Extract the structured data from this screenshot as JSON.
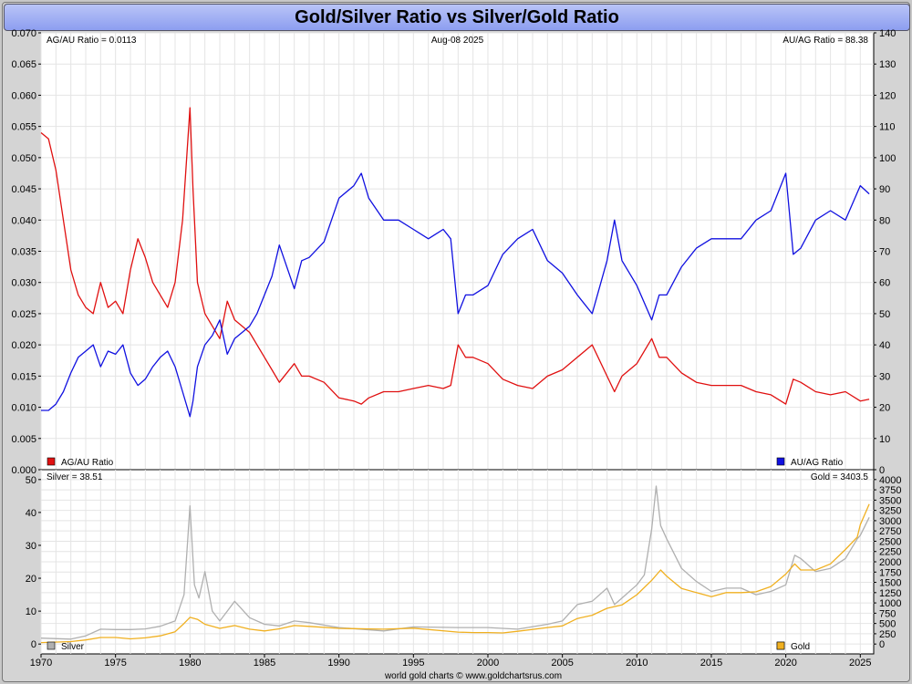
{
  "title": "Gold/Silver Ratio vs Silver/Gold Ratio",
  "footer": "world gold charts © www.goldchartsrus.com",
  "chart_data": [
    {
      "type": "line",
      "panel": "top",
      "date_label": "Aug-08  2025",
      "left_readout": "AG/AU Ratio = 0.0113",
      "right_readout": "AU/AG Ratio = 88.38",
      "left_axis": {
        "ylim": [
          0,
          0.07
        ],
        "ticks": [
          "0.000",
          "0.005",
          "0.010",
          "0.015",
          "0.020",
          "0.025",
          "0.030",
          "0.035",
          "0.040",
          "0.045",
          "0.050",
          "0.055",
          "0.060",
          "0.065",
          "0.070"
        ]
      },
      "right_axis": {
        "ylim": [
          0,
          140
        ],
        "ticks": [
          "0",
          "10",
          "20",
          "30",
          "40",
          "50",
          "60",
          "70",
          "80",
          "90",
          "100",
          "110",
          "120",
          "130",
          "140"
        ]
      },
      "grid": true,
      "series": [
        {
          "name": "AG/AU Ratio",
          "axis": "left",
          "color": "#e01010",
          "x": [
            1970,
            1970.5,
            1971,
            1971.5,
            1972,
            1972.5,
            1973,
            1973.5,
            1974,
            1974.5,
            1975,
            1975.5,
            1976,
            1976.5,
            1977,
            1977.5,
            1978,
            1978.5,
            1979,
            1979.5,
            1980,
            1980.2,
            1980.5,
            1981,
            1981.5,
            1982,
            1982.5,
            1983,
            1983.5,
            1984,
            1984.5,
            1985,
            1985.5,
            1986,
            1987,
            1987.5,
            1988,
            1989,
            1990,
            1991,
            1991.5,
            1992,
            1993,
            1994,
            1995,
            1996,
            1997,
            1997.5,
            1998,
            1998.5,
            1999,
            2000,
            2001,
            2002,
            2003,
            2004,
            2005,
            2006,
            2007,
            2008,
            2008.5,
            2009,
            2010,
            2011,
            2011.5,
            2012,
            2013,
            2014,
            2015,
            2016,
            2017,
            2018,
            2019,
            2020,
            2020.5,
            2021,
            2022,
            2023,
            2024,
            2025,
            2025.6
          ],
          "values": [
            0.054,
            0.053,
            0.048,
            0.04,
            0.032,
            0.028,
            0.026,
            0.025,
            0.03,
            0.026,
            0.027,
            0.025,
            0.032,
            0.037,
            0.034,
            0.03,
            0.028,
            0.026,
            0.03,
            0.04,
            0.058,
            0.045,
            0.03,
            0.025,
            0.023,
            0.021,
            0.027,
            0.024,
            0.023,
            0.022,
            0.02,
            0.018,
            0.016,
            0.014,
            0.017,
            0.015,
            0.015,
            0.014,
            0.0115,
            0.011,
            0.0105,
            0.0115,
            0.0125,
            0.0125,
            0.013,
            0.0135,
            0.013,
            0.0135,
            0.02,
            0.018,
            0.018,
            0.017,
            0.0145,
            0.0135,
            0.013,
            0.015,
            0.016,
            0.018,
            0.02,
            0.015,
            0.0125,
            0.015,
            0.017,
            0.021,
            0.018,
            0.018,
            0.0155,
            0.014,
            0.0135,
            0.0135,
            0.0135,
            0.0125,
            0.012,
            0.0105,
            0.0145,
            0.014,
            0.0125,
            0.012,
            0.0125,
            0.011,
            0.0113
          ]
        },
        {
          "name": "AU/AG Ratio",
          "axis": "right",
          "color": "#1010e0",
          "x": [
            1970,
            1970.5,
            1971,
            1971.5,
            1972,
            1972.5,
            1973,
            1973.5,
            1974,
            1974.5,
            1975,
            1975.5,
            1976,
            1976.5,
            1977,
            1977.5,
            1978,
            1978.5,
            1979,
            1979.5,
            1980,
            1980.2,
            1980.5,
            1981,
            1981.5,
            1982,
            1982.5,
            1983,
            1983.5,
            1984,
            1984.5,
            1985,
            1985.5,
            1986,
            1987,
            1987.5,
            1988,
            1989,
            1990,
            1991,
            1991.5,
            1992,
            1993,
            1994,
            1995,
            1996,
            1997,
            1997.5,
            1998,
            1998.5,
            1999,
            2000,
            2001,
            2002,
            2003,
            2004,
            2005,
            2006,
            2007,
            2008,
            2008.5,
            2009,
            2010,
            2011,
            2011.5,
            2012,
            2013,
            2014,
            2015,
            2016,
            2017,
            2018,
            2019,
            2020,
            2020.5,
            2021,
            2022,
            2023,
            2024,
            2025,
            2025.6
          ],
          "values": [
            19,
            19,
            21,
            25,
            31,
            36,
            38,
            40,
            33,
            38,
            37,
            40,
            31,
            27,
            29,
            33,
            36,
            38,
            33,
            25,
            17,
            22,
            33,
            40,
            43,
            48,
            37,
            42,
            44,
            46,
            50,
            56,
            62,
            72,
            58,
            67,
            68,
            73,
            87,
            91,
            95,
            87,
            80,
            80,
            77,
            74,
            77,
            74,
            50,
            56,
            56,
            59,
            69,
            74,
            77,
            67,
            63,
            56,
            50,
            67,
            80,
            67,
            59,
            48,
            56,
            56,
            65,
            71,
            74,
            74,
            74,
            80,
            83,
            95,
            69,
            71,
            80,
            83,
            80,
            91,
            88.38
          ]
        }
      ],
      "legend": [
        {
          "label": "AG/AU Ratio",
          "color": "#e01010",
          "position": "bottom-left"
        },
        {
          "label": "AU/AG Ratio",
          "color": "#1010e0",
          "position": "bottom-right"
        }
      ]
    },
    {
      "type": "line",
      "panel": "bottom",
      "left_readout": "Silver = 38.51",
      "right_readout": "Gold = 3403.5",
      "left_axis": {
        "ylim": [
          -3,
          53
        ],
        "ticks": [
          "0",
          "10",
          "20",
          "30",
          "40",
          "50"
        ]
      },
      "right_axis": {
        "ylim": [
          -240,
          4240
        ],
        "ticks": [
          "0",
          "250",
          "500",
          "750",
          "1000",
          "1250",
          "1500",
          "1750",
          "2000",
          "2250",
          "2500",
          "2750",
          "3000",
          "3250",
          "3500",
          "3750",
          "4000"
        ]
      },
      "x_ticks": [
        "1970",
        "1975",
        "1980",
        "1985",
        "1990",
        "1995",
        "2000",
        "2005",
        "2010",
        "2015",
        "2020",
        "2025"
      ],
      "grid": true,
      "series": [
        {
          "name": "Silver",
          "axis": "left",
          "color": "#b0b0b0",
          "x": [
            1970,
            1972,
            1973,
            1974,
            1975,
            1976,
            1977,
            1978,
            1979,
            1979.6,
            1980,
            1980.3,
            1980.6,
            1981,
            1981.5,
            1982,
            1982.5,
            1983,
            1984,
            1985,
            1986,
            1987,
            1988,
            1990,
            1993,
            1995,
            1998,
            2000,
            2002,
            2004,
            2005,
            2006,
            2007,
            2008,
            2008.5,
            2009,
            2010,
            2010.5,
            2011,
            2011.3,
            2011.6,
            2012,
            2013,
            2014,
            2015,
            2016,
            2017,
            2018,
            2019,
            2020,
            2020.6,
            2021,
            2022,
            2023,
            2024,
            2024.8,
            2025,
            2025.6
          ],
          "values": [
            1.8,
            1.5,
            2.5,
            4.5,
            4.4,
            4.4,
            4.6,
            5.4,
            7,
            15,
            42,
            18,
            14,
            22,
            10,
            7,
            10,
            13,
            8,
            6,
            5.5,
            7,
            6.5,
            5,
            4,
            5.2,
            5,
            5,
            4.5,
            6,
            7,
            12,
            13,
            17,
            12,
            14,
            18,
            21,
            35,
            48,
            36,
            32,
            23,
            19,
            16,
            17,
            17,
            15,
            16,
            18,
            27,
            26,
            22,
            23,
            26,
            32,
            33,
            38.51
          ]
        },
        {
          "name": "Gold",
          "axis": "right",
          "color": "#f0b020",
          "x": [
            1970,
            1972,
            1973,
            1974,
            1975,
            1976,
            1977,
            1978,
            1979,
            1979.6,
            1980,
            1980.5,
            1981,
            1982,
            1983,
            1984,
            1985,
            1986,
            1987,
            1988,
            1990,
            1993,
            1995,
            1998,
            1999,
            2000,
            2001,
            2002,
            2004,
            2005,
            2006,
            2007,
            2008,
            2009,
            2010,
            2011,
            2011.6,
            2012,
            2013,
            2014,
            2015,
            2016,
            2017,
            2018,
            2019,
            2020,
            2020.6,
            2021,
            2022,
            2023,
            2024,
            2024.8,
            2025,
            2025.6
          ],
          "values": [
            35,
            60,
            100,
            160,
            160,
            125,
            150,
            200,
            300,
            500,
            650,
            600,
            480,
            380,
            450,
            360,
            320,
            370,
            450,
            430,
            380,
            360,
            385,
            290,
            280,
            280,
            270,
            310,
            400,
            440,
            620,
            700,
            870,
            950,
            1200,
            1550,
            1800,
            1650,
            1350,
            1250,
            1150,
            1250,
            1250,
            1270,
            1400,
            1700,
            1950,
            1800,
            1800,
            1950,
            2300,
            2600,
            2900,
            3403.5
          ]
        }
      ],
      "legend": [
        {
          "label": "Silver",
          "color": "#b0b0b0",
          "position": "bottom-left"
        },
        {
          "label": "Gold",
          "color": "#f0b020",
          "position": "bottom-right"
        }
      ]
    }
  ]
}
